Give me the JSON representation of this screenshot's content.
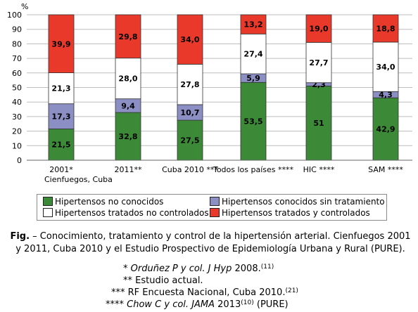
{
  "chart_data": {
    "type": "bar",
    "stacked": true,
    "y_unit": "%",
    "ylim": [
      0,
      100
    ],
    "y_ticks": [
      0,
      10,
      20,
      30,
      40,
      50,
      60,
      70,
      80,
      90,
      100
    ],
    "categories": [
      "2001*",
      "2011**",
      "Cuba 2010 ***",
      "Todos los países ****",
      "HIC ****",
      "SAM ****"
    ],
    "category_sublabel": "Cienfuegos, Cuba",
    "series": [
      {
        "name": "Hipertensos no conocidos",
        "color": "#3c8a37",
        "values": [
          21.5,
          32.8,
          27.5,
          53.5,
          51,
          42.9
        ],
        "labels": [
          "21,5",
          "32,8",
          "27,5",
          "53,5",
          "51",
          "42,9"
        ]
      },
      {
        "name": "Hipertensos conocidos sin tratamiento",
        "color": "#8c8fc4",
        "values": [
          17.3,
          9.4,
          10.7,
          5.9,
          2.3,
          4.3
        ],
        "labels": [
          "17,3",
          "9,4",
          "10,7",
          "5,9",
          "2,3",
          "4,3"
        ]
      },
      {
        "name": "Hipertensos tratados no controlados",
        "color": "#ffffff",
        "values": [
          21.3,
          28.0,
          27.8,
          27.4,
          27.7,
          34.0
        ],
        "labels": [
          "21,3",
          "28,0",
          "27,8",
          "27,4",
          "27,7",
          "34,0"
        ]
      },
      {
        "name": "Hipertensos tratados y controlados",
        "color": "#e8392b",
        "values": [
          39.9,
          29.8,
          34.0,
          13.2,
          19.0,
          18.8
        ],
        "labels": [
          "39,9",
          "29,8",
          "34,0",
          "13,2",
          "19,0",
          "18,8"
        ]
      }
    ]
  },
  "caption": {
    "lead": "Fig.",
    "text": " – Conocimiento, tratamiento y control de la hipertensión arterial. Cienfuegos 2001 y 2011, Cuba 2010 y el Estudio Prospectivo de Epidemiología Urbana y Rural (PURE)."
  },
  "references": {
    "r1": {
      "mark": "* ",
      "authors": "Orduñez P y col. J Hyp",
      "year": " 2008.",
      "sup": "(11)"
    },
    "r2": {
      "text": "** Estudio actual."
    },
    "r3": {
      "text": "*** RF Encuesta Nacional, Cuba 2010.",
      "sup": "(21)"
    },
    "r4": {
      "mark": "**** ",
      "authors": "Chow C y col. JAMA",
      "year": " 2013",
      "sup": "(10)",
      "tail": " (PURE)"
    }
  }
}
